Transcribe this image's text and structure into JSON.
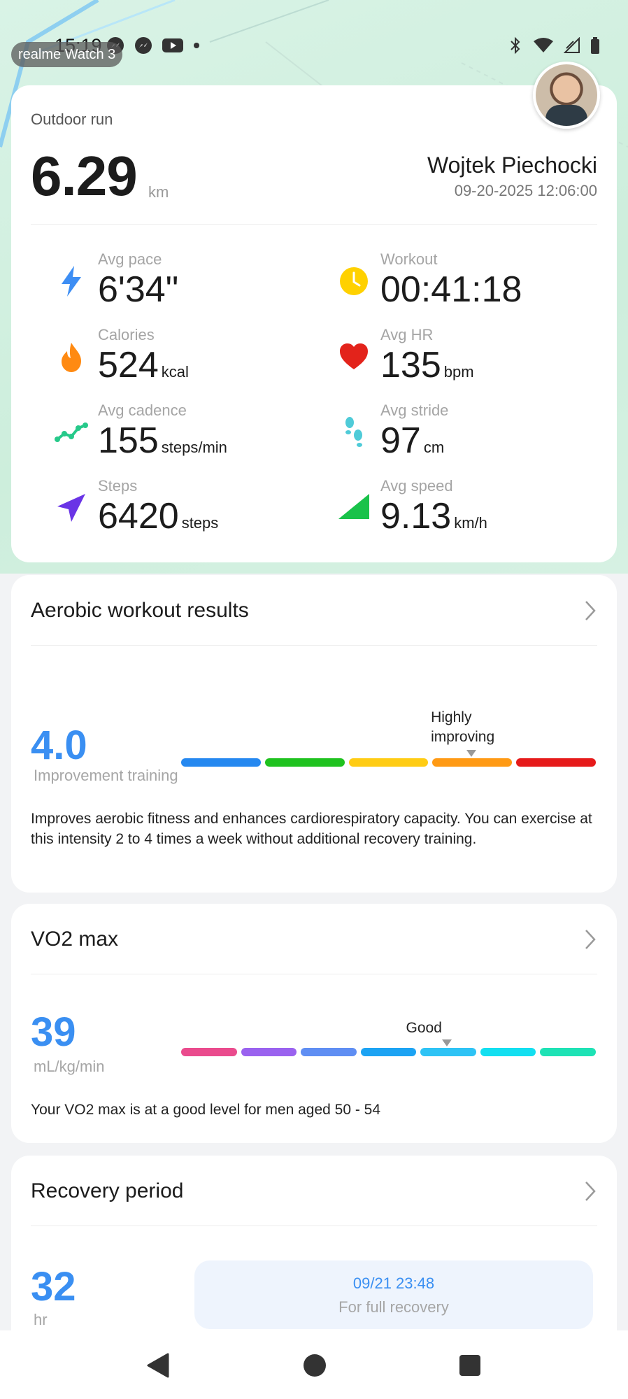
{
  "status_bar": {
    "time": "15:19",
    "watch_label": "realme Watch 3"
  },
  "workout": {
    "type": "Outdoor run",
    "distance": "6.29",
    "distance_unit": "km",
    "user_name": "Wojtek Piechocki",
    "datetime": "09-20-2025 12:06:00"
  },
  "metrics": [
    {
      "label": "Avg pace",
      "value": "6'34\"",
      "unit": "",
      "icon": "lightning-icon",
      "color": "#3d8ef4"
    },
    {
      "label": "Workout",
      "value": "00:41:18",
      "unit": "",
      "icon": "clock-icon",
      "color": "#ffd100"
    },
    {
      "label": "Calories",
      "value": "524",
      "unit": "kcal",
      "icon": "flame-icon",
      "color": "#ff8a12"
    },
    {
      "label": "Avg HR",
      "value": "135",
      "unit": "bpm",
      "icon": "heart-icon",
      "color": "#e3231b"
    },
    {
      "label": "Avg cadence",
      "value": "155",
      "unit": "steps/min",
      "icon": "cadence-icon",
      "color": "#26c98a"
    },
    {
      "label": "Avg stride",
      "value": "97",
      "unit": "cm",
      "icon": "footprints-icon",
      "color": "#4fcbd8"
    },
    {
      "label": "Steps",
      "value": "6420",
      "unit": "steps",
      "icon": "navigation-arrow-icon",
      "color": "#6a34e6"
    },
    {
      "label": "Avg speed",
      "value": "9.13",
      "unit": "km/h",
      "icon": "speed-triangle-icon",
      "color": "#19c24a"
    }
  ],
  "aerobic": {
    "title": "Aerobic workout results",
    "value": "4.0",
    "level": "Improvement training",
    "marker_label": "Highly improving",
    "marker_position": 0.7,
    "segments": [
      "#2588f0",
      "#1fc21f",
      "#ffcc14",
      "#ff9a14",
      "#e61a1a"
    ],
    "description": "Improves aerobic fitness and enhances cardiorespiratory capacity. You can exercise at this intensity 2 to 4 times a week without additional recovery training."
  },
  "vo2": {
    "title": "VO2 max",
    "value": "39",
    "unit": "mL/kg/min",
    "marker_label": "Good",
    "marker_position": 0.64,
    "segments": [
      "#ea4b8d",
      "#9a62ef",
      "#5f8ef3",
      "#1ca3f3",
      "#2ec3f5",
      "#13dff0",
      "#1ee2b5"
    ],
    "description": "Your VO2 max is at a good level for men aged 50 - 54"
  },
  "recovery": {
    "title": "Recovery period",
    "value": "32",
    "unit": "hr",
    "full_recovery_time": "09/21 23:48",
    "full_recovery_label": "For full recovery"
  }
}
